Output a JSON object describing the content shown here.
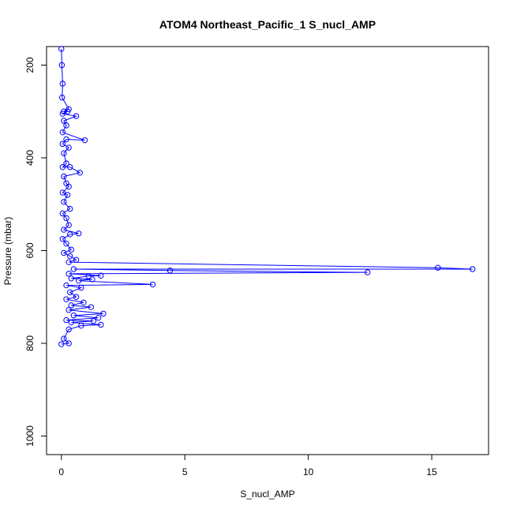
{
  "chart_data": {
    "type": "scatter",
    "title": "ATOM4 Northeast_Pacific_1 S_nucl_AMP",
    "xlabel": "S_nucl_AMP",
    "ylabel": "Pressure (mbar)",
    "xlim": [
      -0.6,
      17.3
    ],
    "ylim": [
      1040,
      160
    ],
    "y_reversed": true,
    "x_ticks": [
      0,
      5,
      10,
      15
    ],
    "y_ticks": [
      200,
      400,
      600,
      800,
      1000
    ],
    "grid": false,
    "legend": "none",
    "series_color": "#0000ff",
    "connect_points": true,
    "series": [
      {
        "points": [
          [
            0.0,
            165
          ],
          [
            0.02,
            200
          ],
          [
            0.05,
            240
          ],
          [
            0.03,
            270
          ],
          [
            0.3,
            295
          ],
          [
            0.1,
            300
          ],
          [
            0.25,
            300
          ],
          [
            0.05,
            305
          ],
          [
            0.6,
            310
          ],
          [
            0.1,
            320
          ],
          [
            0.2,
            330
          ],
          [
            0.05,
            345
          ],
          [
            0.95,
            362
          ],
          [
            0.2,
            360
          ],
          [
            0.05,
            370
          ],
          [
            0.3,
            378
          ],
          [
            0.1,
            390
          ],
          [
            0.2,
            412
          ],
          [
            0.05,
            420
          ],
          [
            0.35,
            420
          ],
          [
            0.75,
            432
          ],
          [
            0.1,
            440
          ],
          [
            0.2,
            455
          ],
          [
            0.3,
            462
          ],
          [
            0.05,
            475
          ],
          [
            0.25,
            480
          ],
          [
            0.1,
            495
          ],
          [
            0.35,
            510
          ],
          [
            0.05,
            520
          ],
          [
            0.2,
            530
          ],
          [
            0.3,
            545
          ],
          [
            0.1,
            555
          ],
          [
            0.7,
            563
          ],
          [
            0.35,
            565
          ],
          [
            0.05,
            575
          ],
          [
            0.2,
            585
          ],
          [
            0.4,
            598
          ],
          [
            0.1,
            605
          ],
          [
            0.35,
            612
          ],
          [
            0.6,
            620
          ],
          [
            0.3,
            625
          ],
          [
            15.25,
            637
          ],
          [
            16.65,
            640
          ],
          [
            0.5,
            640
          ],
          [
            4.4,
            643
          ],
          [
            12.4,
            647
          ],
          [
            0.3,
            650
          ],
          [
            1.6,
            654
          ],
          [
            1.1,
            655
          ],
          [
            0.4,
            660
          ],
          [
            1.25,
            662
          ],
          [
            0.7,
            665
          ],
          [
            3.7,
            673
          ],
          [
            0.2,
            675
          ],
          [
            0.8,
            680
          ],
          [
            0.35,
            690
          ],
          [
            0.6,
            700
          ],
          [
            0.2,
            705
          ],
          [
            0.9,
            712
          ],
          [
            0.4,
            718
          ],
          [
            1.2,
            722
          ],
          [
            0.3,
            728
          ],
          [
            1.7,
            736
          ],
          [
            0.5,
            740
          ],
          [
            1.5,
            745
          ],
          [
            0.2,
            750
          ],
          [
            1.3,
            752
          ],
          [
            0.4,
            755
          ],
          [
            1.6,
            760
          ],
          [
            0.8,
            762
          ],
          [
            0.3,
            770
          ],
          [
            0.1,
            790
          ],
          [
            0.3,
            800
          ],
          [
            0.0,
            802
          ]
        ]
      }
    ]
  }
}
